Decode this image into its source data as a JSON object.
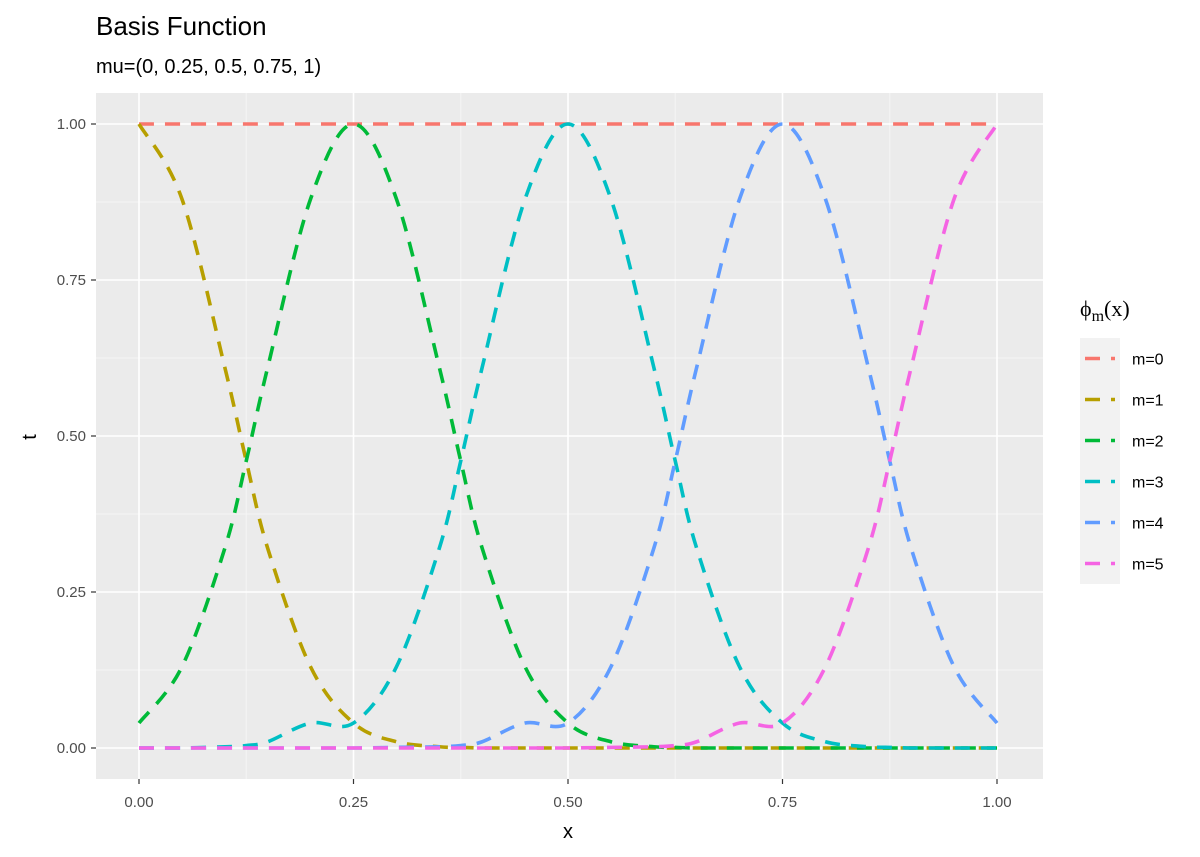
{
  "chart_data": {
    "type": "line",
    "title": "Basis Function",
    "subtitle": "mu=(0, 0.25, 0.5, 0.75, 1)",
    "xlabel": "x",
    "ylabel": "t",
    "xlim": [
      0,
      1
    ],
    "ylim": [
      0,
      1
    ],
    "x_ticks": [
      "0.00",
      "0.25",
      "0.50",
      "0.75",
      "1.00"
    ],
    "y_ticks": [
      "0.00",
      "0.25",
      "0.50",
      "0.75",
      "1.00"
    ],
    "grid": true,
    "legend_position": "right",
    "legend_title": {
      "base": "ϕ",
      "sub": "m",
      "suffix": "(x)"
    },
    "line_style": "dashed",
    "x": [
      0,
      0.05,
      0.1,
      0.125,
      0.15,
      0.2,
      0.25,
      0.3,
      0.35,
      0.375,
      0.4,
      0.45,
      0.5,
      0.55,
      0.6,
      0.625,
      0.65,
      0.7,
      0.75,
      0.8,
      0.85,
      0.875,
      0.9,
      0.95,
      1
    ],
    "series": [
      {
        "name": "m=0",
        "color": "#F8766D",
        "values": [
          1,
          1,
          1,
          1,
          1,
          1,
          1,
          1,
          1,
          1,
          1,
          1,
          1,
          1,
          1,
          1,
          1,
          1,
          1,
          1,
          1,
          1,
          1,
          1,
          1
        ]
      },
      {
        "name": "m=1",
        "color": "#B79F00",
        "values": [
          1,
          0.88,
          0.61,
          0.46,
          0.32,
          0.13,
          0.04,
          0.01,
          0.002,
          0.001,
          0,
          0,
          0,
          0,
          0,
          0,
          0,
          0,
          0,
          0,
          0,
          0,
          0,
          0,
          0
        ]
      },
      {
        "name": "m=2",
        "color": "#00BA38",
        "values": [
          0.04,
          0.13,
          0.32,
          0.46,
          0.61,
          0.88,
          1,
          0.88,
          0.61,
          0.46,
          0.32,
          0.13,
          0.04,
          0.01,
          0.002,
          0.001,
          0,
          0,
          0,
          0,
          0,
          0,
          0,
          0,
          0
        ]
      },
      {
        "name": "m=3",
        "color": "#00BFC4",
        "values": [
          0,
          0,
          0.002,
          0.004,
          0.01,
          0.04,
          0.04,
          0.13,
          0.32,
          0.46,
          0.61,
          0.88,
          1,
          0.88,
          0.61,
          0.46,
          0.32,
          0.13,
          0.04,
          0.01,
          0.002,
          0.001,
          0,
          0,
          0
        ]
      },
      {
        "name": "m=4",
        "color": "#619CFF",
        "values": [
          0,
          0,
          0,
          0,
          0,
          0,
          0,
          0.001,
          0.002,
          0.004,
          0.01,
          0.04,
          0.04,
          0.13,
          0.32,
          0.46,
          0.61,
          0.88,
          1,
          0.88,
          0.61,
          0.46,
          0.32,
          0.13,
          0.04
        ]
      },
      {
        "name": "m=5",
        "color": "#F564E3",
        "values": [
          0,
          0,
          0,
          0,
          0,
          0,
          0,
          0,
          0,
          0,
          0,
          0,
          0,
          0.001,
          0.002,
          0.004,
          0.01,
          0.04,
          0.04,
          0.13,
          0.32,
          0.46,
          0.61,
          0.88,
          1
        ]
      }
    ]
  }
}
